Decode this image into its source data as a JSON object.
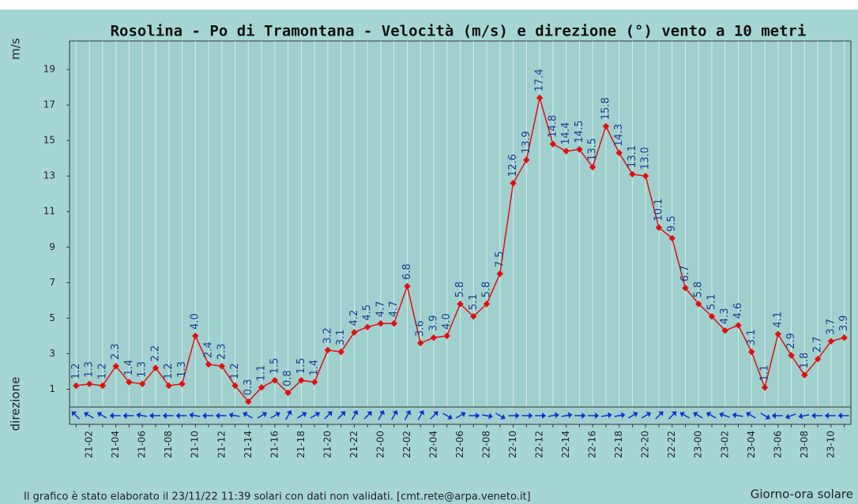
{
  "chart_data": {
    "type": "line",
    "title": "Rosolina - Po di Tramontana - Velocità (m/s) e direzione (°) vento a 10 metri",
    "y_label": "m/s",
    "direction_label": "direzione",
    "x_label": "Giorno-ora solare",
    "footer": "Il grafico è stato elaborato il 23/11/22 11:39 solari con dati non validati. [cmt.rete@arpa.veneto.it]",
    "categories": [
      null,
      "21-02",
      null,
      "21-04",
      null,
      "21-06",
      null,
      "21-08",
      null,
      "21-10",
      null,
      "21-12",
      null,
      "21-14",
      null,
      "21-16",
      null,
      "21-18",
      null,
      "21-20",
      null,
      "21-22",
      null,
      "22-00",
      null,
      "22-02",
      null,
      "22-04",
      null,
      "22-06",
      null,
      "22-08",
      null,
      "22-10",
      null,
      "22-12",
      null,
      "22-14",
      null,
      "22-16",
      null,
      "22-18",
      null,
      "22-20",
      null,
      "22-22",
      null,
      "23-00",
      null,
      "23-02",
      null,
      "23-04",
      null,
      "23-06",
      null,
      "23-08",
      null,
      "23-10",
      null
    ],
    "series": [
      {
        "name": "Velocità",
        "color": "#e01010",
        "values": [
          1.2,
          1.3,
          1.2,
          2.3,
          1.4,
          1.3,
          2.2,
          1.2,
          1.3,
          4.0,
          2.4,
          2.3,
          1.2,
          0.3,
          1.1,
          1.5,
          0.8,
          1.5,
          1.4,
          3.2,
          3.1,
          4.2,
          4.5,
          4.7,
          4.7,
          6.8,
          3.6,
          3.9,
          4.0,
          5.8,
          5.1,
          5.8,
          7.5,
          12.6,
          13.9,
          17.4,
          14.8,
          14.4,
          14.5,
          13.5,
          15.8,
          14.3,
          13.1,
          13.0,
          10.1,
          9.5,
          6.7,
          5.8,
          5.1,
          4.3,
          4.6,
          3.1,
          1.1,
          4.1,
          2.9,
          1.8,
          2.7,
          3.7,
          3.9
        ],
        "value_labels": [
          "1.2",
          "1.3",
          "1.2",
          "2.3",
          "1.4",
          "1.3",
          "2.2",
          "1.2",
          "1.3",
          "4.0",
          "2.4",
          "2.3",
          "1.2",
          "0.3",
          "1.1",
          "1.5",
          "0.8",
          "1.5",
          "1.4",
          "3.2",
          "3.1",
          "4.2",
          "4.5",
          "4.7",
          "4.7",
          "6.8",
          "3.6",
          "3.9",
          "4.0",
          "5.8",
          "5.1",
          "5.8",
          "7.5",
          "12.6",
          "13.9",
          "17.4",
          "14.8",
          "14.4",
          "14.5",
          "13.5",
          "15.8",
          "14.3",
          "13.1",
          "13.0",
          "10.1",
          "9.5",
          "6.7",
          "5.8",
          "5.1",
          "4.3",
          "4.6",
          "3.1",
          "1.1",
          "4.1",
          "2.9",
          "1.8",
          "2.7",
          "3.7",
          "3.9"
        ]
      }
    ],
    "directions": [
      315,
      300,
      300,
      270,
      270,
      280,
      270,
      270,
      270,
      280,
      270,
      270,
      280,
      300,
      60,
      60,
      30,
      60,
      60,
      45,
      45,
      30,
      45,
      30,
      30,
      30,
      30,
      45,
      120,
      60,
      90,
      100,
      120,
      90,
      90,
      90,
      80,
      80,
      90,
      90,
      80,
      80,
      60,
      60,
      45,
      45,
      300,
      300,
      300,
      290,
      280,
      300,
      120,
      270,
      250,
      260,
      270,
      270,
      270
    ],
    "direction_color": "#1030d0",
    "ylim": [
      0,
      20.6
    ],
    "yticks": [
      1,
      3,
      5,
      7,
      9,
      11,
      13,
      15,
      17,
      19
    ]
  }
}
